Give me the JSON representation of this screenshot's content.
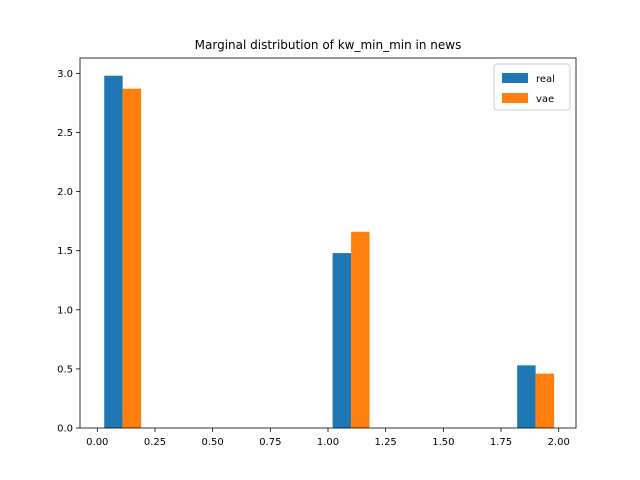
{
  "chart_data": {
    "type": "bar",
    "title": "Marginal distribution of kw_min_min in news",
    "xlabel": "",
    "ylabel": "",
    "xlim": [
      -0.075,
      2.075
    ],
    "ylim": [
      0,
      3.13
    ],
    "xticks": [
      "0.00",
      "0.25",
      "0.50",
      "0.75",
      "1.00",
      "1.25",
      "1.50",
      "1.75",
      "2.00"
    ],
    "yticks": [
      "0.0",
      "0.5",
      "1.0",
      "1.5",
      "2.0",
      "2.5",
      "3.0"
    ],
    "legend_position": "top-right",
    "grid": false,
    "series": [
      {
        "name": "real",
        "color": "#1f77b4",
        "bars": [
          {
            "x0": 0.03,
            "x1": 0.11,
            "value": 2.98
          },
          {
            "x0": 1.02,
            "x1": 1.1,
            "value": 1.48
          },
          {
            "x0": 1.82,
            "x1": 1.9,
            "value": 0.53
          }
        ]
      },
      {
        "name": "vae",
        "color": "#ff7f0e",
        "bars": [
          {
            "x0": 0.11,
            "x1": 0.19,
            "value": 2.87
          },
          {
            "x0": 1.1,
            "x1": 1.18,
            "value": 1.66
          },
          {
            "x0": 1.9,
            "x1": 1.98,
            "value": 0.46
          }
        ]
      }
    ]
  }
}
